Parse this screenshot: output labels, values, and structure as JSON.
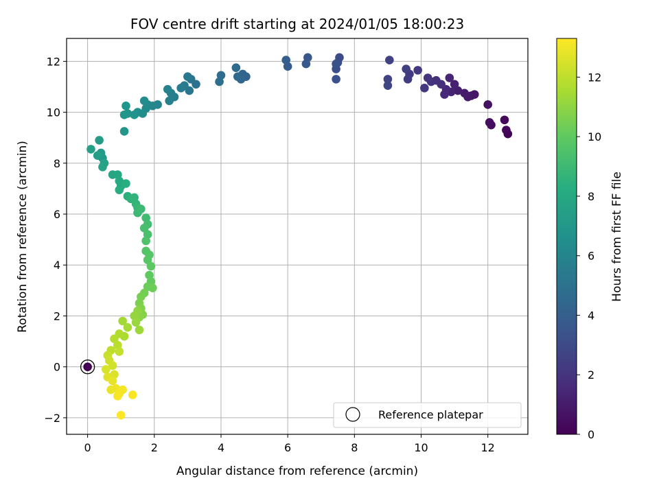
{
  "chart_data": {
    "type": "scatter",
    "title": "FOV centre drift starting at 2024/01/05 18:00:23",
    "xlabel": "Angular distance from reference (arcmin)",
    "ylabel": "Rotation from reference (arcmin)",
    "xlim": [
      -0.63,
      13.2
    ],
    "ylim": [
      -2.65,
      12.9
    ],
    "xticks": [
      0,
      2,
      4,
      6,
      8,
      10,
      12
    ],
    "yticks": [
      -2,
      0,
      2,
      4,
      6,
      8,
      10,
      12
    ],
    "xtick_labels": [
      "0",
      "2",
      "4",
      "6",
      "8",
      "10",
      "12"
    ],
    "ytick_labels": [
      "−2",
      "0",
      "2",
      "4",
      "6",
      "8",
      "10",
      "12"
    ],
    "grid": true,
    "colormap": "viridis",
    "colorbar": {
      "label": "Hours from first FF file",
      "min": 0,
      "max": 13.3,
      "ticks": [
        0,
        2,
        4,
        6,
        8,
        10,
        12
      ],
      "tick_labels": [
        "0",
        "2",
        "4",
        "6",
        "8",
        "10",
        "12"
      ]
    },
    "legend": {
      "position": "lower-right",
      "entries": [
        {
          "label": "Reference platepar",
          "marker": "open-circle"
        }
      ]
    },
    "reference_point": {
      "x": 0,
      "y": 0
    },
    "series": [
      {
        "points": [
          [
            0.0,
            0.0,
            0.0
          ],
          [
            12.6,
            9.15,
            0.1
          ],
          [
            12.55,
            9.3,
            0.2
          ],
          [
            12.5,
            9.7,
            0.3
          ],
          [
            12.1,
            9.5,
            0.4
          ],
          [
            12.05,
            9.6,
            0.5
          ],
          [
            12.0,
            10.3,
            0.6
          ],
          [
            11.6,
            10.7,
            0.7
          ],
          [
            11.5,
            10.65,
            0.8
          ],
          [
            11.4,
            10.6,
            0.9
          ],
          [
            11.3,
            10.75,
            1.0
          ],
          [
            11.1,
            10.85,
            1.1
          ],
          [
            11.0,
            11.1,
            1.2
          ],
          [
            10.9,
            10.8,
            1.3
          ],
          [
            10.85,
            11.35,
            1.4
          ],
          [
            10.75,
            10.9,
            1.5
          ],
          [
            10.7,
            10.7,
            1.6
          ],
          [
            10.6,
            11.1,
            1.7
          ],
          [
            10.45,
            11.25,
            1.8
          ],
          [
            10.3,
            11.2,
            1.9
          ],
          [
            10.2,
            11.35,
            2.0
          ],
          [
            10.1,
            10.95,
            2.1
          ],
          [
            9.9,
            11.65,
            2.2
          ],
          [
            9.65,
            11.5,
            2.3
          ],
          [
            9.6,
            11.3,
            2.4
          ],
          [
            9.55,
            11.7,
            2.5
          ],
          [
            9.05,
            12.05,
            2.6
          ],
          [
            9.0,
            11.3,
            2.7
          ],
          [
            9.0,
            11.05,
            2.8
          ],
          [
            7.55,
            12.15,
            3.0
          ],
          [
            7.5,
            11.95,
            3.1
          ],
          [
            7.45,
            11.7,
            3.2
          ],
          [
            7.45,
            11.3,
            3.3
          ],
          [
            7.45,
            11.9,
            3.4
          ],
          [
            6.6,
            12.15,
            3.6
          ],
          [
            6.55,
            11.9,
            3.7
          ],
          [
            6.0,
            11.8,
            3.8
          ],
          [
            5.95,
            12.05,
            3.9
          ],
          [
            4.75,
            11.4,
            4.2
          ],
          [
            4.65,
            11.5,
            4.3
          ],
          [
            4.6,
            11.3,
            4.4
          ],
          [
            4.5,
            11.4,
            4.5
          ],
          [
            4.45,
            11.75,
            4.6
          ],
          [
            4.0,
            11.45,
            4.7
          ],
          [
            3.95,
            11.2,
            4.8
          ],
          [
            3.25,
            11.1,
            5.0
          ],
          [
            3.1,
            11.3,
            5.1
          ],
          [
            3.05,
            10.85,
            5.2
          ],
          [
            3.0,
            11.4,
            5.3
          ],
          [
            2.9,
            11.05,
            5.4
          ],
          [
            2.8,
            10.95,
            5.5
          ],
          [
            2.6,
            10.6,
            5.6
          ],
          [
            2.5,
            10.75,
            5.7
          ],
          [
            2.45,
            10.45,
            5.8
          ],
          [
            2.4,
            10.9,
            5.9
          ],
          [
            2.1,
            10.3,
            6.0
          ],
          [
            1.95,
            10.25,
            6.1
          ],
          [
            1.8,
            10.3,
            6.2
          ],
          [
            1.75,
            10.15,
            6.3
          ],
          [
            1.7,
            10.45,
            6.4
          ],
          [
            1.65,
            9.95,
            6.5
          ],
          [
            1.5,
            10.0,
            6.6
          ],
          [
            1.4,
            9.9,
            6.7
          ],
          [
            1.2,
            9.95,
            6.8
          ],
          [
            1.15,
            10.25,
            6.9
          ],
          [
            1.1,
            9.9,
            7.0
          ],
          [
            1.1,
            9.25,
            7.0
          ],
          [
            0.45,
            8.2,
            7.1
          ],
          [
            0.4,
            8.4,
            7.2
          ],
          [
            0.35,
            8.9,
            7.3
          ],
          [
            0.3,
            8.3,
            7.4
          ],
          [
            0.1,
            8.55,
            7.5
          ],
          [
            0.5,
            8.0,
            7.6
          ],
          [
            0.45,
            7.85,
            7.7
          ],
          [
            0.75,
            7.55,
            7.8
          ],
          [
            0.9,
            7.55,
            7.9
          ],
          [
            0.95,
            7.3,
            8.0
          ],
          [
            1.0,
            7.1,
            8.1
          ],
          [
            0.95,
            6.95,
            8.2
          ],
          [
            1.15,
            7.2,
            8.3
          ],
          [
            1.2,
            6.7,
            8.4
          ],
          [
            1.3,
            6.6,
            8.5
          ],
          [
            1.4,
            6.65,
            8.6
          ],
          [
            1.45,
            6.4,
            8.7
          ],
          [
            1.5,
            6.25,
            8.8
          ],
          [
            1.5,
            6.05,
            8.9
          ],
          [
            1.6,
            6.2,
            9.0
          ],
          [
            1.75,
            5.85,
            9.1
          ],
          [
            1.8,
            5.6,
            9.2
          ],
          [
            1.7,
            5.45,
            9.3
          ],
          [
            1.8,
            5.2,
            9.4
          ],
          [
            1.75,
            4.95,
            9.5
          ],
          [
            1.75,
            4.55,
            9.6
          ],
          [
            1.85,
            4.4,
            9.7
          ],
          [
            1.8,
            4.2,
            9.8
          ],
          [
            1.9,
            3.95,
            9.9
          ],
          [
            1.85,
            3.6,
            10.0
          ],
          [
            1.9,
            3.35,
            10.1
          ],
          [
            1.8,
            3.15,
            10.2
          ],
          [
            1.95,
            3.1,
            10.3
          ],
          [
            1.7,
            2.9,
            10.4
          ],
          [
            1.6,
            2.75,
            10.5
          ],
          [
            1.55,
            2.5,
            10.6
          ],
          [
            1.6,
            2.3,
            10.7
          ],
          [
            1.65,
            2.05,
            10.8
          ],
          [
            1.55,
            1.95,
            10.9
          ],
          [
            1.5,
            2.2,
            11.0
          ],
          [
            1.4,
            2.0,
            11.1
          ],
          [
            1.45,
            1.75,
            11.2
          ],
          [
            1.55,
            1.45,
            11.3
          ],
          [
            1.05,
            1.8,
            11.4
          ],
          [
            1.2,
            1.55,
            11.5
          ],
          [
            1.1,
            1.2,
            11.6
          ],
          [
            0.95,
            1.3,
            11.7
          ],
          [
            0.8,
            1.1,
            11.8
          ],
          [
            0.9,
            0.85,
            11.9
          ],
          [
            0.7,
            0.65,
            12.0
          ],
          [
            0.95,
            0.6,
            12.1
          ],
          [
            0.6,
            0.45,
            12.2
          ],
          [
            0.65,
            0.25,
            12.3
          ],
          [
            0.75,
            0.05,
            12.4
          ],
          [
            0.55,
            -0.1,
            12.5
          ],
          [
            0.8,
            -0.3,
            12.6
          ],
          [
            0.6,
            -0.4,
            12.7
          ],
          [
            0.75,
            -0.55,
            12.8
          ],
          [
            0.7,
            -0.9,
            12.9
          ],
          [
            0.85,
            -0.85,
            13.0
          ],
          [
            0.95,
            -1.05,
            13.1
          ],
          [
            1.05,
            -0.9,
            13.1
          ],
          [
            0.9,
            -1.15,
            13.2
          ],
          [
            1.35,
            -1.1,
            13.2
          ],
          [
            1.0,
            -1.9,
            13.3
          ]
        ]
      }
    ]
  }
}
